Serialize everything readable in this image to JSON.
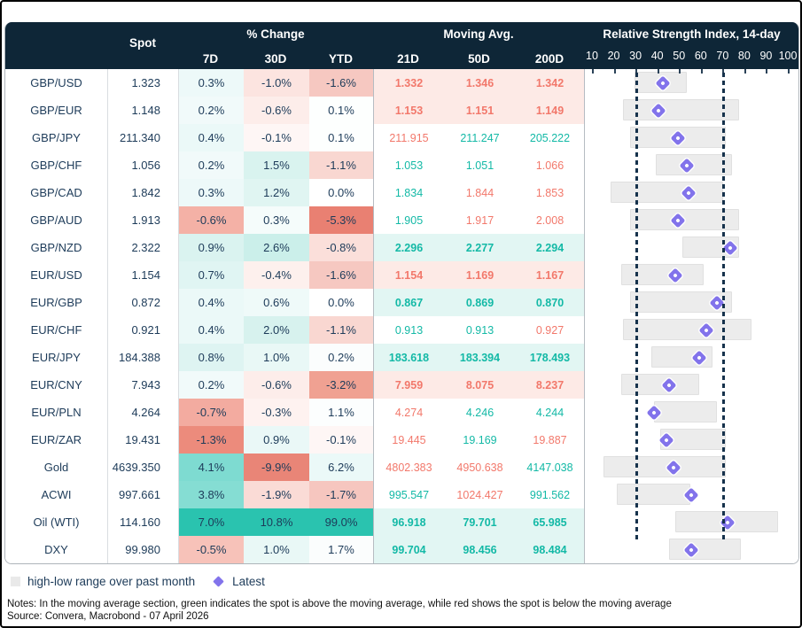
{
  "header": {
    "spot": "Spot",
    "pct_change": "% Change",
    "d7": "7D",
    "d30": "30D",
    "ytd": "YTD",
    "moving_avg": "Moving Avg.",
    "d21": "21D",
    "d50": "50D",
    "d200": "200D",
    "rsi_title": "Relative Strength Index, 14-day"
  },
  "colors": {
    "header_bg": "#0e2637",
    "body_text": "#1d3b59",
    "up_text": "#13b9a6",
    "down_text": "#f2786b",
    "ma_up_bg": "#e2f6f3",
    "ma_down_bg": "#fdeae6",
    "range_bar": "#ececec",
    "latest_marker": "#8273eb",
    "ref_line": "#16324c"
  },
  "chart_data": {
    "type": "table",
    "title": "FX / commodity dashboard with spot, % change, moving averages and 14-day RSI",
    "rsi_axis": {
      "min": 10,
      "max": 100,
      "ticks": [
        10,
        20,
        30,
        40,
        50,
        60,
        70,
        80,
        90,
        100
      ],
      "reference_lines": [
        30,
        70
      ]
    },
    "rows": [
      {
        "label": "GBP/USD",
        "spot": "1.323",
        "chg": [
          {
            "v": "0.3%",
            "bg": "#edf9f9"
          },
          {
            "v": "-1.0%",
            "bg": "#fce4e0"
          },
          {
            "v": "-1.6%",
            "bg": "#f6c8c1"
          }
        ],
        "ma_bg": "#fdeae6",
        "ma_bold": true,
        "ma": [
          {
            "v": "1.332",
            "dir": "down"
          },
          {
            "v": "1.346",
            "dir": "down"
          },
          {
            "v": "1.342",
            "dir": "down"
          }
        ],
        "rsi": {
          "low": 29,
          "high": 53,
          "latest": 42
        }
      },
      {
        "label": "GBP/EUR",
        "spot": "1.148",
        "chg": [
          {
            "v": "0.2%",
            "bg": "#f1fafa"
          },
          {
            "v": "-0.6%",
            "bg": "#fdedea"
          },
          {
            "v": "0.1%",
            "bg": "#fdfffe"
          }
        ],
        "ma_bg": "#fdeae6",
        "ma_bold": true,
        "ma": [
          {
            "v": "1.153",
            "dir": "down"
          },
          {
            "v": "1.151",
            "dir": "down"
          },
          {
            "v": "1.149",
            "dir": "down"
          }
        ],
        "rsi": {
          "low": 24,
          "high": 77,
          "latest": 40
        }
      },
      {
        "label": "GBP/JPY",
        "spot": "211.340",
        "chg": [
          {
            "v": "0.4%",
            "bg": "#ebf9f8"
          },
          {
            "v": "-0.1%",
            "bg": "#fef6f5"
          },
          {
            "v": "0.1%",
            "bg": "#fdfffe"
          }
        ],
        "ma_bg": "#ffffff",
        "ma_bold": false,
        "ma": [
          {
            "v": "211.915",
            "dir": "down"
          },
          {
            "v": "211.247",
            "dir": "up"
          },
          {
            "v": "205.222",
            "dir": "up"
          }
        ],
        "rsi": {
          "low": 27,
          "high": 71,
          "latest": 49
        }
      },
      {
        "label": "GBP/CHF",
        "spot": "1.056",
        "chg": [
          {
            "v": "0.2%",
            "bg": "#f1fafa"
          },
          {
            "v": "1.5%",
            "bg": "#d9f3ef"
          },
          {
            "v": "-1.1%",
            "bg": "#f9d7d1"
          }
        ],
        "ma_bg": "#ffffff",
        "ma_bold": false,
        "ma": [
          {
            "v": "1.053",
            "dir": "up"
          },
          {
            "v": "1.051",
            "dir": "up"
          },
          {
            "v": "1.066",
            "dir": "down"
          }
        ],
        "rsi": {
          "low": 39,
          "high": 74,
          "latest": 53
        }
      },
      {
        "label": "GBP/CAD",
        "spot": "1.842",
        "chg": [
          {
            "v": "0.3%",
            "bg": "#edf9f9"
          },
          {
            "v": "1.2%",
            "bg": "#e0f5f2"
          },
          {
            "v": "0.0%",
            "bg": "#ffffff"
          }
        ],
        "ma_bg": "#ffffff",
        "ma_bold": false,
        "ma": [
          {
            "v": "1.834",
            "dir": "up"
          },
          {
            "v": "1.844",
            "dir": "down"
          },
          {
            "v": "1.853",
            "dir": "down"
          }
        ],
        "rsi": {
          "low": 18,
          "high": 70,
          "latest": 54
        }
      },
      {
        "label": "GBP/AUD",
        "spot": "1.913",
        "chg": [
          {
            "v": "-0.6%",
            "bg": "#f4b1a6"
          },
          {
            "v": "0.3%",
            "bg": "#f5fcfb"
          },
          {
            "v": "-5.3%",
            "bg": "#e98072"
          }
        ],
        "ma_bg": "#ffffff",
        "ma_bold": false,
        "ma": [
          {
            "v": "1.905",
            "dir": "up"
          },
          {
            "v": "1.917",
            "dir": "down"
          },
          {
            "v": "2.008",
            "dir": "down"
          }
        ],
        "rsi": {
          "low": 27,
          "high": 77,
          "latest": 49
        }
      },
      {
        "label": "GBP/NZD",
        "spot": "2.322",
        "chg": [
          {
            "v": "0.9%",
            "bg": "#daf3f0"
          },
          {
            "v": "2.6%",
            "bg": "#cbefea"
          },
          {
            "v": "-0.8%",
            "bg": "#fbdfda"
          }
        ],
        "ma_bg": "#e2f6f3",
        "ma_bold": true,
        "ma": [
          {
            "v": "2.296",
            "dir": "up"
          },
          {
            "v": "2.277",
            "dir": "up"
          },
          {
            "v": "2.294",
            "dir": "up"
          }
        ],
        "rsi": {
          "low": 51,
          "high": 77,
          "latest": 73
        }
      },
      {
        "label": "EUR/USD",
        "spot": "1.154",
        "chg": [
          {
            "v": "0.7%",
            "bg": "#e0f5f3"
          },
          {
            "v": "-0.4%",
            "bg": "#fdf0ed"
          },
          {
            "v": "-1.6%",
            "bg": "#f6c8c1"
          }
        ],
        "ma_bg": "#fdeae6",
        "ma_bold": true,
        "ma": [
          {
            "v": "1.154",
            "dir": "down"
          },
          {
            "v": "1.169",
            "dir": "down"
          },
          {
            "v": "1.167",
            "dir": "down"
          }
        ],
        "rsi": {
          "low": 23,
          "high": 61,
          "latest": 48
        }
      },
      {
        "label": "EUR/GBP",
        "spot": "0.872",
        "chg": [
          {
            "v": "0.4%",
            "bg": "#ebf9f8"
          },
          {
            "v": "0.6%",
            "bg": "#effaf9"
          },
          {
            "v": "0.0%",
            "bg": "#ffffff"
          }
        ],
        "ma_bg": "#e2f6f3",
        "ma_bold": true,
        "ma": [
          {
            "v": "0.867",
            "dir": "up"
          },
          {
            "v": "0.869",
            "dir": "up"
          },
          {
            "v": "0.870",
            "dir": "up"
          }
        ],
        "rsi": {
          "low": 27,
          "high": 74,
          "latest": 67
        }
      },
      {
        "label": "EUR/CHF",
        "spot": "0.921",
        "chg": [
          {
            "v": "0.4%",
            "bg": "#ebf9f8"
          },
          {
            "v": "2.0%",
            "bg": "#d7f2ee"
          },
          {
            "v": "-1.1%",
            "bg": "#f9d7d1"
          }
        ],
        "ma_bg": "#ffffff",
        "ma_bold": false,
        "ma": [
          {
            "v": "0.913",
            "dir": "up"
          },
          {
            "v": "0.913",
            "dir": "up"
          },
          {
            "v": "0.927",
            "dir": "down"
          }
        ],
        "rsi": {
          "low": 24,
          "high": 83,
          "latest": 62
        }
      },
      {
        "label": "EUR/JPY",
        "spot": "184.388",
        "chg": [
          {
            "v": "0.8%",
            "bg": "#def4f2"
          },
          {
            "v": "1.0%",
            "bg": "#e9f8f6"
          },
          {
            "v": "0.2%",
            "bg": "#fbfdfd"
          }
        ],
        "ma_bg": "#e2f6f3",
        "ma_bold": true,
        "ma": [
          {
            "v": "183.618",
            "dir": "up"
          },
          {
            "v": "183.394",
            "dir": "up"
          },
          {
            "v": "178.493",
            "dir": "up"
          }
        ],
        "rsi": {
          "low": 37,
          "high": 65,
          "latest": 59
        }
      },
      {
        "label": "EUR/CNY",
        "spot": "7.943",
        "chg": [
          {
            "v": "0.2%",
            "bg": "#f1fafa"
          },
          {
            "v": "-0.6%",
            "bg": "#fdedea"
          },
          {
            "v": "-3.2%",
            "bg": "#f0a192"
          }
        ],
        "ma_bg": "#fdeae6",
        "ma_bold": true,
        "ma": [
          {
            "v": "7.959",
            "dir": "down"
          },
          {
            "v": "8.075",
            "dir": "down"
          },
          {
            "v": "8.237",
            "dir": "down"
          }
        ],
        "rsi": {
          "low": 23,
          "high": 59,
          "latest": 45
        }
      },
      {
        "label": "EUR/PLN",
        "spot": "4.264",
        "chg": [
          {
            "v": "-0.7%",
            "bg": "#f3aba0"
          },
          {
            "v": "-0.3%",
            "bg": "#fef2f0"
          },
          {
            "v": "1.1%",
            "bg": "#fcfefe"
          }
        ],
        "ma_bg": "#ffffff",
        "ma_bold": false,
        "ma": [
          {
            "v": "4.274",
            "dir": "down"
          },
          {
            "v": "4.246",
            "dir": "up"
          },
          {
            "v": "4.244",
            "dir": "up"
          }
        ],
        "rsi": {
          "low": 38,
          "high": 67,
          "latest": 38
        }
      },
      {
        "label": "EUR/ZAR",
        "spot": "19.431",
        "chg": [
          {
            "v": "-1.3%",
            "bg": "#ec8b7c"
          },
          {
            "v": "0.9%",
            "bg": "#eaf8f7"
          },
          {
            "v": "-0.1%",
            "bg": "#fef6f5"
          }
        ],
        "ma_bg": "#ffffff",
        "ma_bold": false,
        "ma": [
          {
            "v": "19.445",
            "dir": "down"
          },
          {
            "v": "19.169",
            "dir": "up"
          },
          {
            "v": "19.887",
            "dir": "down"
          }
        ],
        "rsi": {
          "low": 41,
          "high": 71,
          "latest": 44
        }
      },
      {
        "label": "Gold",
        "spot": "4639.350",
        "chg": [
          {
            "v": "4.1%",
            "bg": "#7edbd1"
          },
          {
            "v": "-9.9%",
            "bg": "#e98577"
          },
          {
            "v": "6.2%",
            "bg": "#ebf9f8"
          }
        ],
        "ma_bg": "#ffffff",
        "ma_bold": false,
        "ma": [
          {
            "v": "4802.383",
            "dir": "down"
          },
          {
            "v": "4950.638",
            "dir": "down"
          },
          {
            "v": "4147.038",
            "dir": "up"
          }
        ],
        "rsi": {
          "low": 15,
          "high": 71,
          "latest": 47
        }
      },
      {
        "label": "ACWI",
        "spot": "997.661",
        "chg": [
          {
            "v": "3.8%",
            "bg": "#85ddd3"
          },
          {
            "v": "-1.9%",
            "bg": "#fadbd6"
          },
          {
            "v": "-1.7%",
            "bg": "#f6c6bf"
          }
        ],
        "ma_bg": "#ffffff",
        "ma_bold": false,
        "ma": [
          {
            "v": "995.547",
            "dir": "up"
          },
          {
            "v": "1024.427",
            "dir": "down"
          },
          {
            "v": "991.562",
            "dir": "up"
          }
        ],
        "rsi": {
          "low": 21,
          "high": 55,
          "latest": 55
        }
      },
      {
        "label": "Oil (WTI)",
        "spot": "114.160",
        "chg": [
          {
            "v": "7.0%",
            "bg": "#2ac3af"
          },
          {
            "v": "10.8%",
            "bg": "#2ac3af"
          },
          {
            "v": "99.0%",
            "bg": "#2ac3af"
          }
        ],
        "ma_bg": "#e2f6f3",
        "ma_bold": true,
        "ma": [
          {
            "v": "96.918",
            "dir": "up"
          },
          {
            "v": "79.701",
            "dir": "up"
          },
          {
            "v": "65.985",
            "dir": "up"
          }
        ],
        "rsi": {
          "low": 48,
          "high": 95,
          "latest": 72
        }
      },
      {
        "label": "DXY",
        "spot": "99.980",
        "chg": [
          {
            "v": "-0.5%",
            "bg": "#f7c2b9"
          },
          {
            "v": "1.0%",
            "bg": "#e9f8f6"
          },
          {
            "v": "1.7%",
            "bg": "#fbfdfd"
          }
        ],
        "ma_bg": "#e2f6f3",
        "ma_bold": true,
        "ma": [
          {
            "v": "99.704",
            "dir": "up"
          },
          {
            "v": "98.456",
            "dir": "up"
          },
          {
            "v": "98.484",
            "dir": "up"
          }
        ],
        "rsi": {
          "low": 45,
          "high": 78,
          "latest": 55
        }
      }
    ]
  },
  "legend": {
    "range_label": "high-low range over past month",
    "latest_label": "Latest"
  },
  "notes": "Notes: In the moving average section, green indicates the spot is above the moving average, while red shows the spot is below the moving average",
  "source": "Source: Convera, Macrobond - 07 April 2026"
}
